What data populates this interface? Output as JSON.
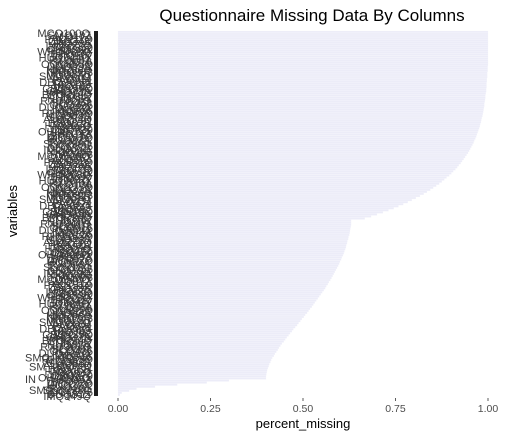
{
  "chart_data": {
    "type": "bar",
    "orientation": "horizontal",
    "title": "Questionnaire Missing Data By Columns",
    "xlabel": "percent_missing",
    "ylabel": "variables",
    "xlim": [
      0,
      1
    ],
    "x_ticks": [
      "0.00",
      "0.25",
      "0.50",
      "0.75",
      "1.00"
    ],
    "grid": false,
    "legend": "none",
    "bar_color": "#ececf8",
    "label_color": "#3a3a3a",
    "visible_labels": [
      "SMQ",
      "SM",
      "IN",
      "SMQ"
    ],
    "values": [
      1.0,
      1.0,
      1.0,
      1.0,
      1.0,
      1.0,
      1.0,
      1.0,
      1.0,
      1.0,
      1.0,
      1.0,
      1.0,
      1.0,
      1.0,
      1.0,
      1.0,
      0.999,
      0.999,
      0.999,
      0.998,
      0.998,
      0.998,
      0.997,
      0.997,
      0.996,
      0.996,
      0.996,
      0.995,
      0.995,
      0.994,
      0.993,
      0.993,
      0.992,
      0.991,
      0.99,
      0.99,
      0.989,
      0.988,
      0.987,
      0.986,
      0.985,
      0.983,
      0.982,
      0.981,
      0.979,
      0.978,
      0.976,
      0.974,
      0.972,
      0.97,
      0.968,
      0.966,
      0.963,
      0.961,
      0.958,
      0.955,
      0.952,
      0.949,
      0.946,
      0.942,
      0.938,
      0.934,
      0.93,
      0.926,
      0.921,
      0.917,
      0.912,
      0.906,
      0.901,
      0.895,
      0.888,
      0.882,
      0.875,
      0.868,
      0.86,
      0.852,
      0.844,
      0.835,
      0.826,
      0.816,
      0.805,
      0.794,
      0.783,
      0.771,
      0.758,
      0.745,
      0.731,
      0.716,
      0.7,
      0.684,
      0.667,
      0.63,
      0.63,
      0.63,
      0.629,
      0.628,
      0.627,
      0.626,
      0.625,
      0.623,
      0.622,
      0.62,
      0.619,
      0.617,
      0.616,
      0.614,
      0.612,
      0.61,
      0.608,
      0.605,
      0.603,
      0.6,
      0.598,
      0.595,
      0.592,
      0.589,
      0.586,
      0.583,
      0.58,
      0.577,
      0.574,
      0.57,
      0.567,
      0.563,
      0.56,
      0.556,
      0.552,
      0.548,
      0.544,
      0.54,
      0.536,
      0.532,
      0.528,
      0.524,
      0.519,
      0.515,
      0.511,
      0.506,
      0.502,
      0.497,
      0.493,
      0.488,
      0.484,
      0.479,
      0.474,
      0.47,
      0.465,
      0.461,
      0.456,
      0.452,
      0.448,
      0.443,
      0.439,
      0.435,
      0.432,
      0.428,
      0.424,
      0.421,
      0.417,
      0.414,
      0.412,
      0.409,
      0.407,
      0.405,
      0.403,
      0.402,
      0.401,
      0.4,
      0.4,
      0.3,
      0.24,
      0.16,
      0.1,
      0.05,
      0.03,
      0.01,
      0.005
    ]
  }
}
